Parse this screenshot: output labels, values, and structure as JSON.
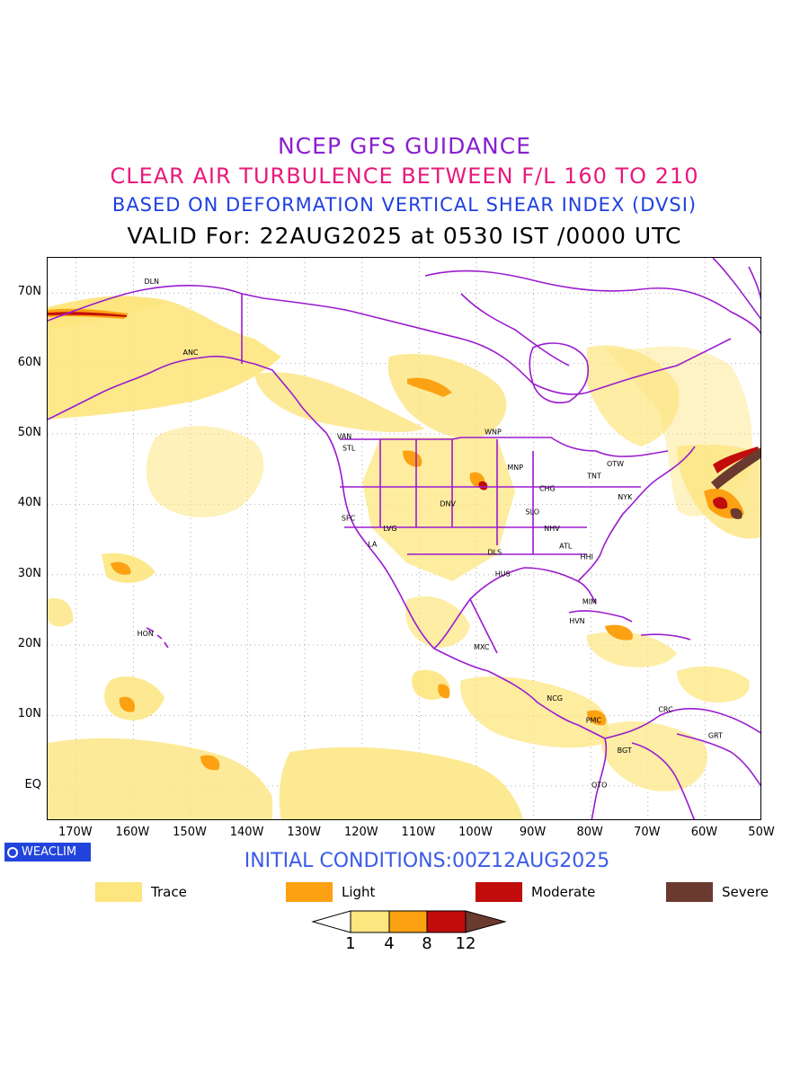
{
  "titles": {
    "line1": "NCEP GFS GUIDANCE",
    "line2": "CLEAR AIR TURBULENCE BETWEEN F/L 160 TO 210",
    "line3": "BASED ON DEFORMATION VERTICAL SHEAR INDEX (DVSI)",
    "line4": "VALID For: 22AUG2025 at 0530 IST /0000 UTC"
  },
  "map": {
    "lat_labels": [
      "70N",
      "60N",
      "50N",
      "40N",
      "30N",
      "20N",
      "10N",
      "EQ"
    ],
    "lon_labels": [
      "170W",
      "160W",
      "150W",
      "140W",
      "130W",
      "120W",
      "110W",
      "100W",
      "90W",
      "80W",
      "70W",
      "60W",
      "50W"
    ],
    "stations": [
      {
        "code": "DLN",
        "lat": 71.3,
        "lon": -156.8
      },
      {
        "code": "ANC",
        "lat": 61.2,
        "lon": -150.0
      },
      {
        "code": "VAN",
        "lat": 49.3,
        "lon": -123.1
      },
      {
        "code": "STL",
        "lat": 47.6,
        "lon": -122.3
      },
      {
        "code": "WNP",
        "lat": 49.9,
        "lon": -97.1
      },
      {
        "code": "MNP",
        "lat": 44.9,
        "lon": -93.2
      },
      {
        "code": "TNT",
        "lat": 43.7,
        "lon": -79.4
      },
      {
        "code": "OTW",
        "lat": 45.4,
        "lon": -75.7
      },
      {
        "code": "CHG",
        "lat": 41.9,
        "lon": -87.6
      },
      {
        "code": "NYK",
        "lat": 40.7,
        "lon": -74.0
      },
      {
        "code": "DNV",
        "lat": 39.7,
        "lon": -105.0
      },
      {
        "code": "SFC",
        "lat": 37.7,
        "lon": -122.4
      },
      {
        "code": "LVG",
        "lat": 36.2,
        "lon": -115.1
      },
      {
        "code": "SLO",
        "lat": 38.6,
        "lon": -90.2
      },
      {
        "code": "NHV",
        "lat": 36.2,
        "lon": -86.8
      },
      {
        "code": "LA",
        "lat": 34.0,
        "lon": -118.2
      },
      {
        "code": "ATL",
        "lat": 33.7,
        "lon": -84.4
      },
      {
        "code": "DLS",
        "lat": 32.8,
        "lon": -96.8
      },
      {
        "code": "HHI",
        "lat": 32.2,
        "lon": -80.7
      },
      {
        "code": "HUS",
        "lat": 29.8,
        "lon": -95.4
      },
      {
        "code": "MIM",
        "lat": 25.8,
        "lon": -80.2
      },
      {
        "code": "HVN",
        "lat": 23.1,
        "lon": -82.4
      },
      {
        "code": "HON",
        "lat": 21.3,
        "lon": -157.9
      },
      {
        "code": "MXC",
        "lat": 19.4,
        "lon": -99.1
      },
      {
        "code": "NCG",
        "lat": 12.1,
        "lon": -86.3
      },
      {
        "code": "CRC",
        "lat": 10.5,
        "lon": -66.9
      },
      {
        "code": "PMC",
        "lat": 9.0,
        "lon": -79.5
      },
      {
        "code": "GRT",
        "lat": 6.8,
        "lon": -58.2
      },
      {
        "code": "BGT",
        "lat": 4.7,
        "lon": -74.1
      },
      {
        "code": "QTO",
        "lat": -0.2,
        "lon": -78.5
      }
    ]
  },
  "branding": {
    "logo_text": "WEACLIM"
  },
  "initial_conditions": "INITIAL CONDITIONS:00Z12AUG2025",
  "legend": {
    "items": [
      {
        "label": "Trace",
        "color": "#fde57f"
      },
      {
        "label": "Light",
        "color": "#fca112"
      },
      {
        "label": "Moderate",
        "color": "#c10c0c"
      },
      {
        "label": "Severe",
        "color": "#6b3a2e"
      }
    ],
    "colorbar_ticks": [
      "1",
      "4",
      "8",
      "12"
    ]
  },
  "colors": {
    "border_lines": "#9b1bcf",
    "trace": "#fde57f",
    "light": "#fca112",
    "moderate": "#c10c0c",
    "severe": "#6b3a2e"
  }
}
